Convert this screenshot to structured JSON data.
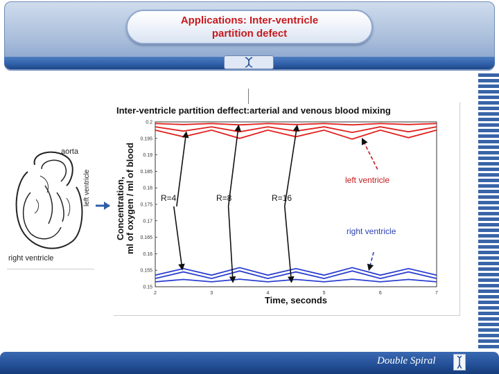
{
  "slide": {
    "title_line1": "Applications: Inter-ventricle",
    "title_line2": "partition defect",
    "footer_brand": "Double Spiral",
    "colors": {
      "header_blue": "#2f5fa8",
      "title_red": "#c8181c",
      "stripe_blue": "#3a64a8"
    }
  },
  "diagram": {
    "label_aorta": "aorta",
    "label_left_ventricle": "left ventricle",
    "label_right_ventricle": "right ventricle"
  },
  "chart_data": {
    "type": "line",
    "title": "Inter-ventricle partition deffect:arterial and venous blood mixing",
    "xlabel": "Time, seconds",
    "ylabel_line1": "Concentration,",
    "ylabel_line2": "ml of oxygen / ml of blood",
    "xlim": [
      2,
      7
    ],
    "ylim": [
      0.15,
      0.2
    ],
    "x_ticks": [
      "2",
      "3",
      "4",
      "5",
      "6",
      "7"
    ],
    "y_ticks": [
      "0.2",
      "0.195",
      "0.19",
      "0.185",
      "0.18",
      "0.175",
      "0.17",
      "0.165",
      "0.16",
      "0.155",
      "0.15"
    ],
    "x_grid": true,
    "y_grid": false,
    "series_red": [
      {
        "values": [
          0.1995,
          0.1992,
          0.1995,
          0.1991,
          0.1995,
          0.1992,
          0.1995,
          0.1991,
          0.1995,
          0.1992,
          0.1995
        ]
      },
      {
        "values": [
          0.1985,
          0.1972,
          0.1985,
          0.197,
          0.1985,
          0.1972,
          0.1985,
          0.1968,
          0.1985,
          0.197,
          0.1985
        ]
      },
      {
        "values": [
          0.1975,
          0.1955,
          0.1975,
          0.195,
          0.1975,
          0.1955,
          0.1975,
          0.1948,
          0.1975,
          0.1952,
          0.1975
        ]
      }
    ],
    "series_blue": [
      {
        "values": [
          0.1515,
          0.1522,
          0.1515,
          0.1523,
          0.1515,
          0.1522,
          0.1515,
          0.1523,
          0.1515,
          0.1522,
          0.1515
        ]
      },
      {
        "values": [
          0.1525,
          0.1545,
          0.1525,
          0.1548,
          0.1525,
          0.1545,
          0.1525,
          0.1548,
          0.1525,
          0.1545,
          0.1525
        ]
      },
      {
        "values": [
          0.1535,
          0.1555,
          0.1535,
          0.1558,
          0.1535,
          0.1555,
          0.1535,
          0.1558,
          0.1535,
          0.1555,
          0.1535
        ]
      }
    ],
    "annotations": {
      "r4": "R=4",
      "r8": "R=8",
      "r16": "R=16",
      "left_ventricle": "left ventricle",
      "right_ventricle": "right ventricle"
    }
  }
}
